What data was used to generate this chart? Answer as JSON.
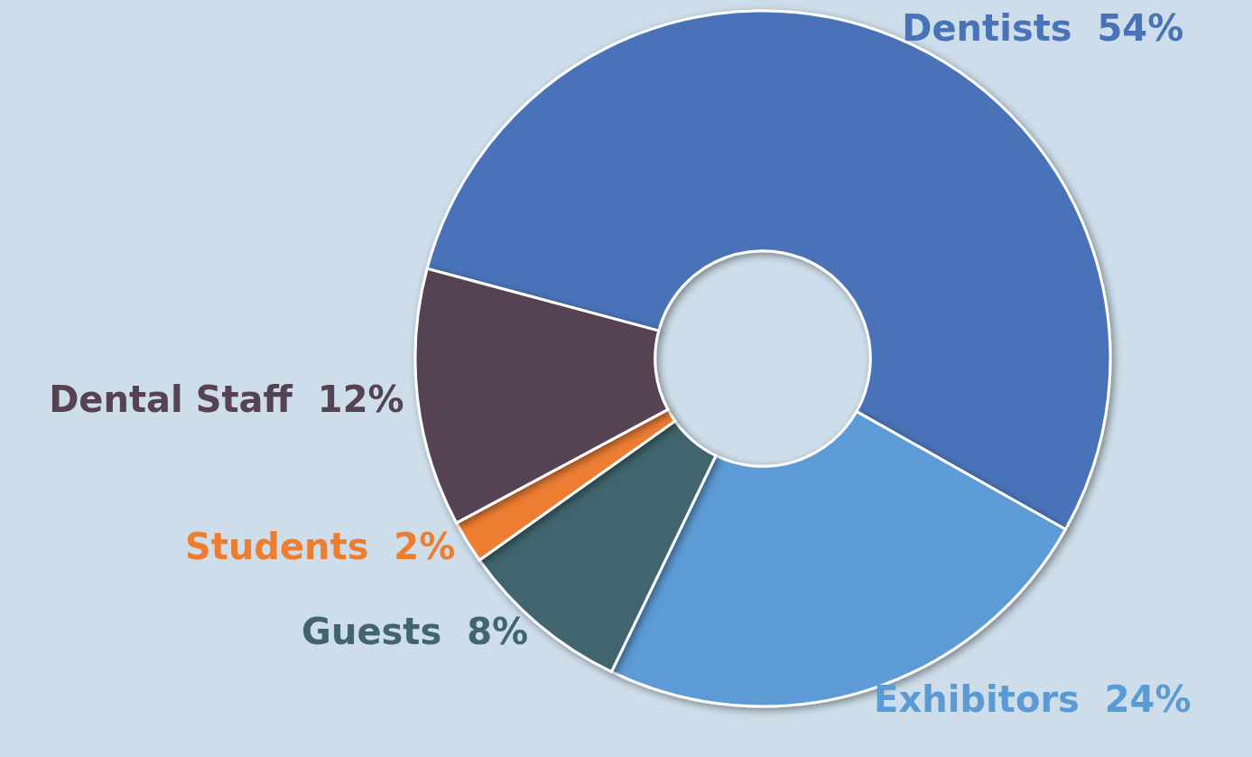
{
  "chart_data": {
    "type": "donut",
    "categories": [
      "Dentists",
      "Exhibitors",
      "Guests",
      "Students",
      "Dental Staff"
    ],
    "values": [
      54,
      24,
      8,
      2,
      12
    ],
    "value_labels": [
      "54%",
      "24%",
      "8%",
      "2%",
      "12%"
    ],
    "colors": [
      "#4a72b8",
      "#5b9bd5",
      "#41656e",
      "#ed7d31",
      "#554252"
    ],
    "legend": false
  }
}
